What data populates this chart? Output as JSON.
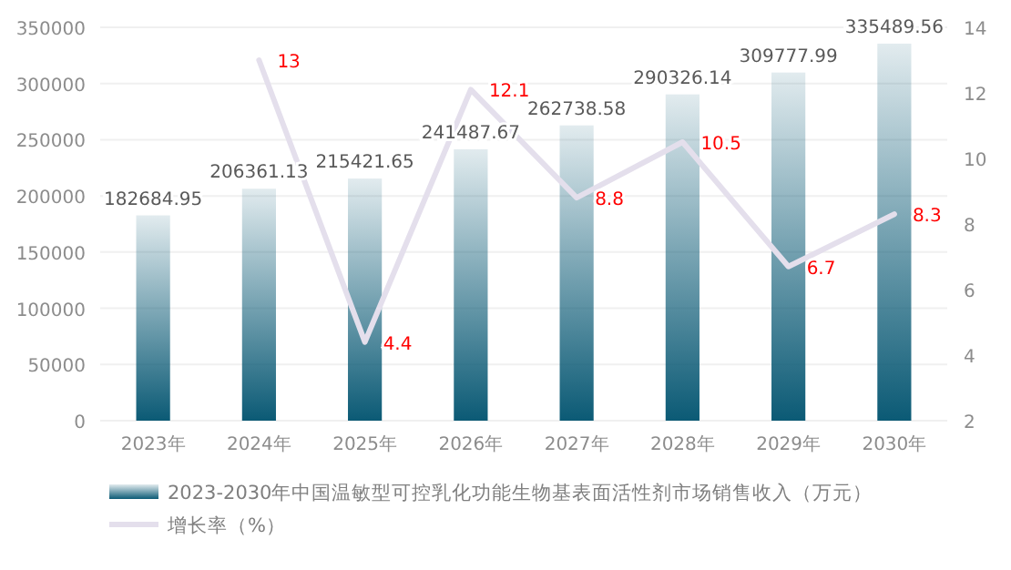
{
  "chart_data": {
    "type": "bar",
    "categories": [
      "2023年",
      "2024年",
      "2025年",
      "2026年",
      "2027年",
      "2028年",
      "2029年",
      "2030年"
    ],
    "series": [
      {
        "name": "2023-2030年中国温敏型可控乳化功能生物基表面活性剂市场销售收入（万元）",
        "color": "#0b5a75",
        "values": [
          182684.95,
          206361.13,
          215421.65,
          241487.67,
          262738.58,
          290326.14,
          309777.99,
          335489.56
        ]
      },
      {
        "name": "增长率（%）",
        "type": "line",
        "axis": "y2",
        "color": "#e4dfec",
        "values": [
          null,
          13,
          4.4,
          12.1,
          8.8,
          10.5,
          6.7,
          8.3
        ]
      }
    ],
    "ylim": [
      0,
      350000
    ],
    "yticks": [
      0,
      50000,
      100000,
      150000,
      200000,
      250000,
      300000,
      350000
    ],
    "y2lim": [
      2,
      14
    ],
    "y2ticks": [
      2,
      4,
      6,
      8,
      10,
      12,
      14
    ],
    "grid": "y",
    "legend": "bottom left",
    "data_labels": true
  }
}
